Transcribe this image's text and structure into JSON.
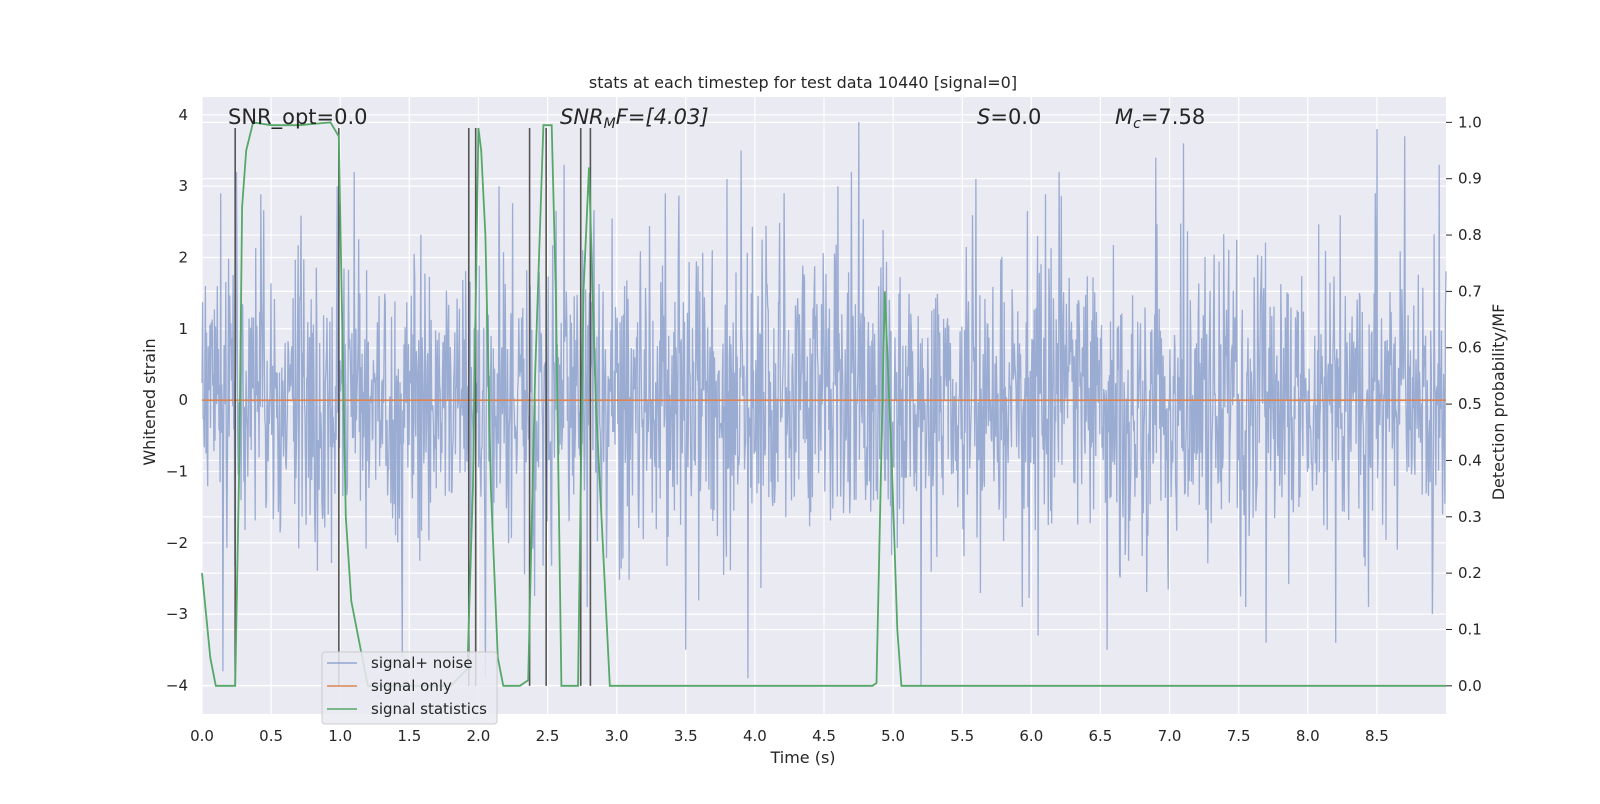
{
  "chart_data": {
    "type": "line",
    "title": "stats at each timestep for test data 10440 [signal=0]",
    "xlabel": "Time (s)",
    "ylabel": "Whitened strain",
    "ylabel_right": "Detection probability/MF",
    "xlim": [
      0,
      9.0
    ],
    "ylim": [
      -4.4,
      4.25
    ],
    "ylim_right": [
      -0.05,
      1.045
    ],
    "x_ticks": [
      0,
      0.5,
      1,
      1.5,
      2,
      2.5,
      3,
      3.5,
      4,
      4.5,
      5,
      5.5,
      6,
      6.5,
      7,
      7.5,
      8,
      8.5
    ],
    "x_tick_labels": [
      "0.0",
      "0.5",
      "1.0",
      "1.5",
      "2.0",
      "2.5",
      "3.0",
      "3.5",
      "4.0",
      "4.5",
      "5.0",
      "5.5",
      "6.0",
      "6.5",
      "7.0",
      "7.5",
      "8.0",
      "8.5"
    ],
    "y_ticks": [
      4,
      3,
      2,
      1,
      0,
      -1,
      -2,
      -3,
      -4
    ],
    "y_tick_labels": [
      "4",
      "3",
      "2",
      "1",
      "0",
      "−1",
      "−2",
      "−3",
      "−4"
    ],
    "y_right_ticks": [
      1.0,
      0.9,
      0.8,
      0.7,
      0.6,
      0.5,
      0.4,
      0.3,
      0.2,
      0.1,
      0.0
    ],
    "y_right_tick_labels": [
      "1.0",
      "0.9",
      "0.8",
      "0.7",
      "0.6",
      "0.5",
      "0.4",
      "0.3",
      "0.2",
      "0.1",
      "0.0"
    ],
    "grid": true,
    "legend_position": "lower-left",
    "annotations": {
      "snr_opt": "SNR_opt=0.0",
      "snr_mf_main": "SNR",
      "snr_mf_sub": "M",
      "snr_mf_rest": "F=[4.03]",
      "s_main": "S",
      "s_rest": "=0.0",
      "mc_main": "M",
      "mc_sub": "c",
      "mc_rest": "=7.58"
    },
    "series": [
      {
        "name": "signal+ noise",
        "color": "#92a5cf",
        "axis": "left",
        "description_values": "noise band roughly between -2.5 and 2.6 with peaks to about +3.9 and -4.0",
        "peaks_max": [
          [
            0.25,
            3.2
          ],
          [
            0.98,
            3.0
          ],
          [
            1.1,
            3.2
          ],
          [
            2.15,
            3.0
          ],
          [
            2.62,
            3.3
          ],
          [
            3.8,
            3.1
          ],
          [
            3.9,
            3.5
          ],
          [
            4.6,
            3.0
          ],
          [
            4.7,
            3.2
          ],
          [
            4.75,
            3.9
          ],
          [
            5.6,
            3.1
          ],
          [
            6.2,
            3.2
          ],
          [
            6.9,
            3.4
          ],
          [
            7.1,
            3.6
          ],
          [
            8.5,
            3.8
          ],
          [
            8.7,
            3.7
          ],
          [
            8.95,
            3.3
          ]
        ],
        "peaks_min": [
          [
            0.15,
            -3.8
          ],
          [
            1.45,
            -3.6
          ],
          [
            2.05,
            -3.9
          ],
          [
            3.5,
            -3.5
          ],
          [
            3.95,
            -3.9
          ],
          [
            5.2,
            -4.0
          ],
          [
            6.05,
            -3.3
          ],
          [
            6.55,
            -3.5
          ],
          [
            7.7,
            -3.4
          ],
          [
            8.2,
            -3.4
          ],
          [
            8.9,
            -3.0
          ]
        ]
      },
      {
        "name": "signal only",
        "color": "#dd8452",
        "axis": "left",
        "x": [
          0,
          9.0
        ],
        "y": [
          0,
          0
        ]
      },
      {
        "name": "signal statistics",
        "color": "#55a868",
        "axis": "right",
        "x": [
          0.0,
          0.02,
          0.06,
          0.1,
          0.24,
          0.27,
          0.29,
          0.32,
          0.37,
          0.5,
          0.7,
          0.93,
          0.99,
          1.01,
          1.04,
          1.08,
          1.12,
          1.16,
          1.2,
          1.4,
          1.6,
          1.8,
          1.92,
          1.96,
          2.0,
          2.02,
          2.05,
          2.09,
          2.14,
          2.18,
          2.3,
          2.36,
          2.41,
          2.47,
          2.53,
          2.56,
          2.6,
          2.64,
          2.72,
          2.76,
          2.8,
          2.85,
          2.95,
          3.1,
          3.5,
          4.0,
          4.5,
          4.85,
          4.88,
          4.94,
          4.99,
          5.03,
          5.06,
          5.2,
          6.0,
          7.0,
          8.0,
          9.0
        ],
        "y": [
          0.2,
          0.15,
          0.05,
          0.0,
          0.0,
          0.4,
          0.85,
          0.95,
          1.0,
          0.995,
          0.995,
          1.0,
          0.975,
          0.7,
          0.3,
          0.15,
          0.1,
          0.05,
          0.0,
          0.0,
          0.0,
          0.0,
          0.03,
          0.35,
          0.99,
          0.95,
          0.8,
          0.35,
          0.05,
          0.0,
          0.0,
          0.01,
          0.55,
          0.995,
          0.995,
          0.7,
          0.0,
          0.0,
          0.0,
          0.7,
          0.92,
          0.5,
          0.0,
          0.0,
          0.0,
          0.0,
          0.0,
          0.0,
          0.005,
          0.7,
          0.4,
          0.1,
          0.0,
          0.0,
          0.0,
          0.0,
          0.0,
          0.0
        ]
      }
    ],
    "vertical_lines": {
      "color": "#555555",
      "x": [
        0.24,
        0.99,
        1.93,
        1.98,
        2.37,
        2.49,
        2.74,
        2.81
      ],
      "top_right_axis": [
        0.99,
        0.99,
        0.99,
        0.99,
        0.99,
        0.99,
        0.99,
        0.99
      ]
    }
  }
}
